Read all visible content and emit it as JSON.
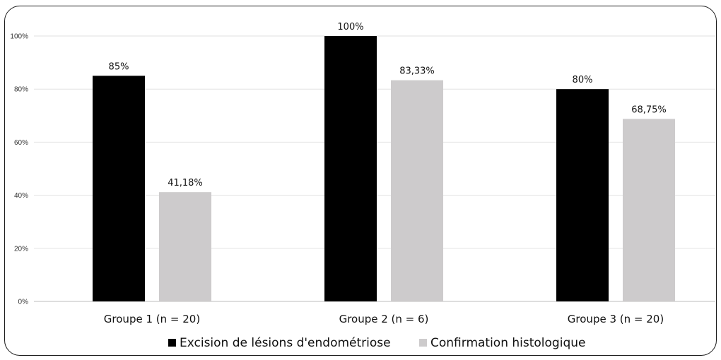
{
  "chart_data": {
    "type": "bar",
    "categories": [
      "Groupe 1 (n = 20)",
      "Groupe 2 (n = 6)",
      "Groupe 3 (n = 20)"
    ],
    "series": [
      {
        "name": "Excision de lésions d'endométriose",
        "color": "#000000",
        "values": [
          85,
          100,
          80
        ],
        "labels": [
          "85%",
          "100%",
          "80%"
        ]
      },
      {
        "name": "Confirmation histologique",
        "color": "#cdcbcc",
        "values": [
          41.18,
          83.33,
          68.75
        ],
        "labels": [
          "41,18%",
          "83,33%",
          "68,75%"
        ]
      }
    ],
    "yticks": [
      "0%",
      "20%",
      "40%",
      "60%",
      "80%",
      "100%"
    ],
    "ylim": [
      0,
      100
    ],
    "grid": true,
    "legend": "bottom"
  }
}
